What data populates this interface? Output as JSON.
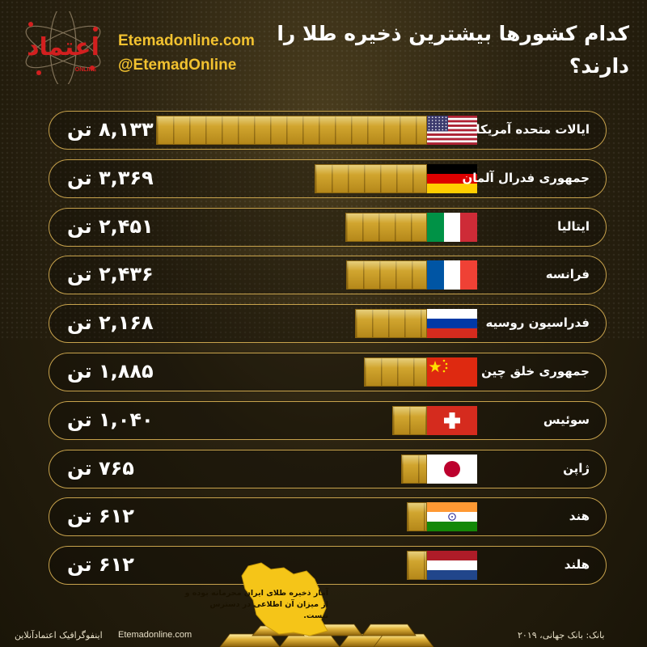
{
  "header": {
    "logo_text": "اعتماد",
    "logo_sub": "ONLINE",
    "website": "Etemadonline.com",
    "handle": "@EtemadOnline",
    "title": "کدام کشورها بیشترین ذخیره طلا را دارند؟"
  },
  "chart_data": {
    "type": "bar",
    "orientation": "horizontal",
    "unit": "تن",
    "categories": [
      "ایالات متحده آمریکا",
      "جمهوری فدرال آلمان",
      "ایتالیا",
      "فرانسه",
      "فدراسیون روسیه",
      "جمهوری خلق چین",
      "سوئیس",
      "ژاپن",
      "هند",
      "هلند"
    ],
    "values": [
      8133,
      3369,
      2451,
      2436,
      2168,
      1885,
      1040,
      765,
      612,
      612
    ],
    "value_labels": [
      "۸,۱۳۳ تن",
      "۳,۳۶۹ تن",
      "۲,۴۵۱ تن",
      "۲,۴۳۶ تن",
      "۲,۱۶۸ تن",
      "۱,۸۸۵ تن",
      "۱,۰۴۰ تن",
      "۷۶۵ تن",
      "۶۱۲ تن",
      "۶۱۲ تن"
    ],
    "flags": [
      "usa",
      "germany",
      "italy",
      "france",
      "russia",
      "china",
      "switzerland",
      "japan",
      "india",
      "netherlands"
    ],
    "colors": {
      "gold": "#c99a22",
      "border": "#c7a24c",
      "accent": "#f2c230"
    }
  },
  "note": "آمار ذخیره طلای ایران محرمانه بوده و از میزان آن اطلاعی در دسترس نیست.",
  "footer": {
    "source": "بانک: بانک جهانی، ۲۰۱۹",
    "website": "Etemadonline.com",
    "brand": "اینفوگرافیک اعتمادآنلاین"
  }
}
